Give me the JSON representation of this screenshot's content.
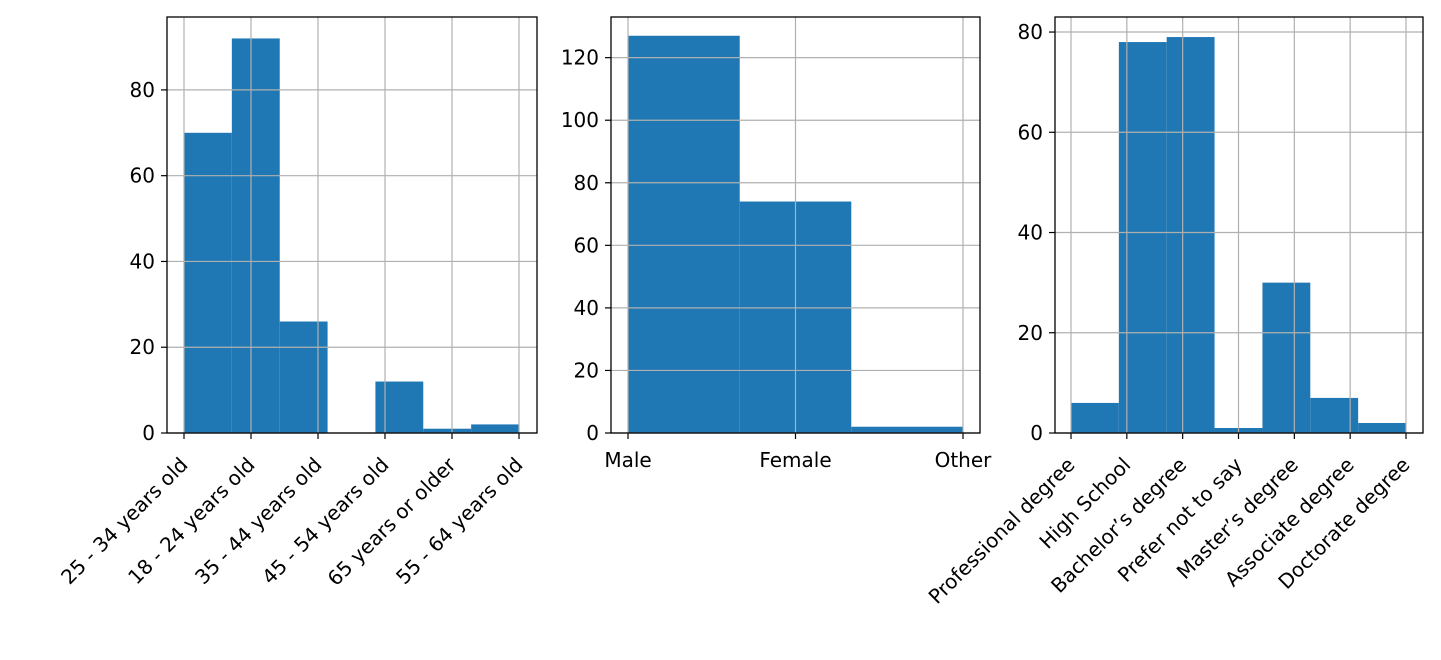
{
  "figure": {
    "bar_color": "#1f77b4",
    "grid_color": "#b0b0b0",
    "frame_color": "#000000"
  },
  "chart_data": [
    {
      "type": "bar",
      "kind": "histogram",
      "title": "",
      "xlabel": "",
      "ylabel": "",
      "grid": true,
      "ylim": [
        0,
        97
      ],
      "yticks": [
        0,
        20,
        40,
        60,
        80
      ],
      "x_tick_labels": [
        "25 - 34 years old",
        "18 - 24 years old",
        "35 - 44 years old",
        "45 - 54 years old",
        "65 years or older",
        "55 - 64 years old"
      ],
      "x_tick_rotation": 45,
      "bin_edges": [
        0,
        0.714,
        1.429,
        2.143,
        2.857,
        3.571,
        4.286,
        5
      ],
      "values": [
        70,
        92,
        26,
        0,
        12,
        1,
        2
      ]
    },
    {
      "type": "bar",
      "kind": "histogram",
      "title": "",
      "xlabel": "",
      "ylabel": "",
      "grid": true,
      "ylim": [
        0,
        133
      ],
      "yticks": [
        0,
        20,
        40,
        60,
        80,
        100,
        120
      ],
      "x_tick_labels": [
        "Male",
        "Female",
        "Other"
      ],
      "x_tick_rotation": 0,
      "bin_edges": [
        0,
        0.667,
        1.333,
        2
      ],
      "values": [
        127,
        74,
        2
      ]
    },
    {
      "type": "bar",
      "kind": "histogram",
      "title": "",
      "xlabel": "",
      "ylabel": "",
      "grid": true,
      "ylim": [
        0,
        83
      ],
      "yticks": [
        0,
        20,
        40,
        60,
        80
      ],
      "x_tick_labels": [
        "Professional degree",
        "High School",
        "Bachelor’s degree",
        "Prefer not to say",
        "Master’s degree",
        "Associate degree",
        "Doctorate degree"
      ],
      "x_tick_rotation": 45,
      "bin_edges": [
        0,
        0.857,
        1.714,
        2.571,
        3.429,
        4.286,
        5.143,
        6
      ],
      "values": [
        6,
        78,
        79,
        1,
        30,
        7,
        2
      ]
    }
  ]
}
